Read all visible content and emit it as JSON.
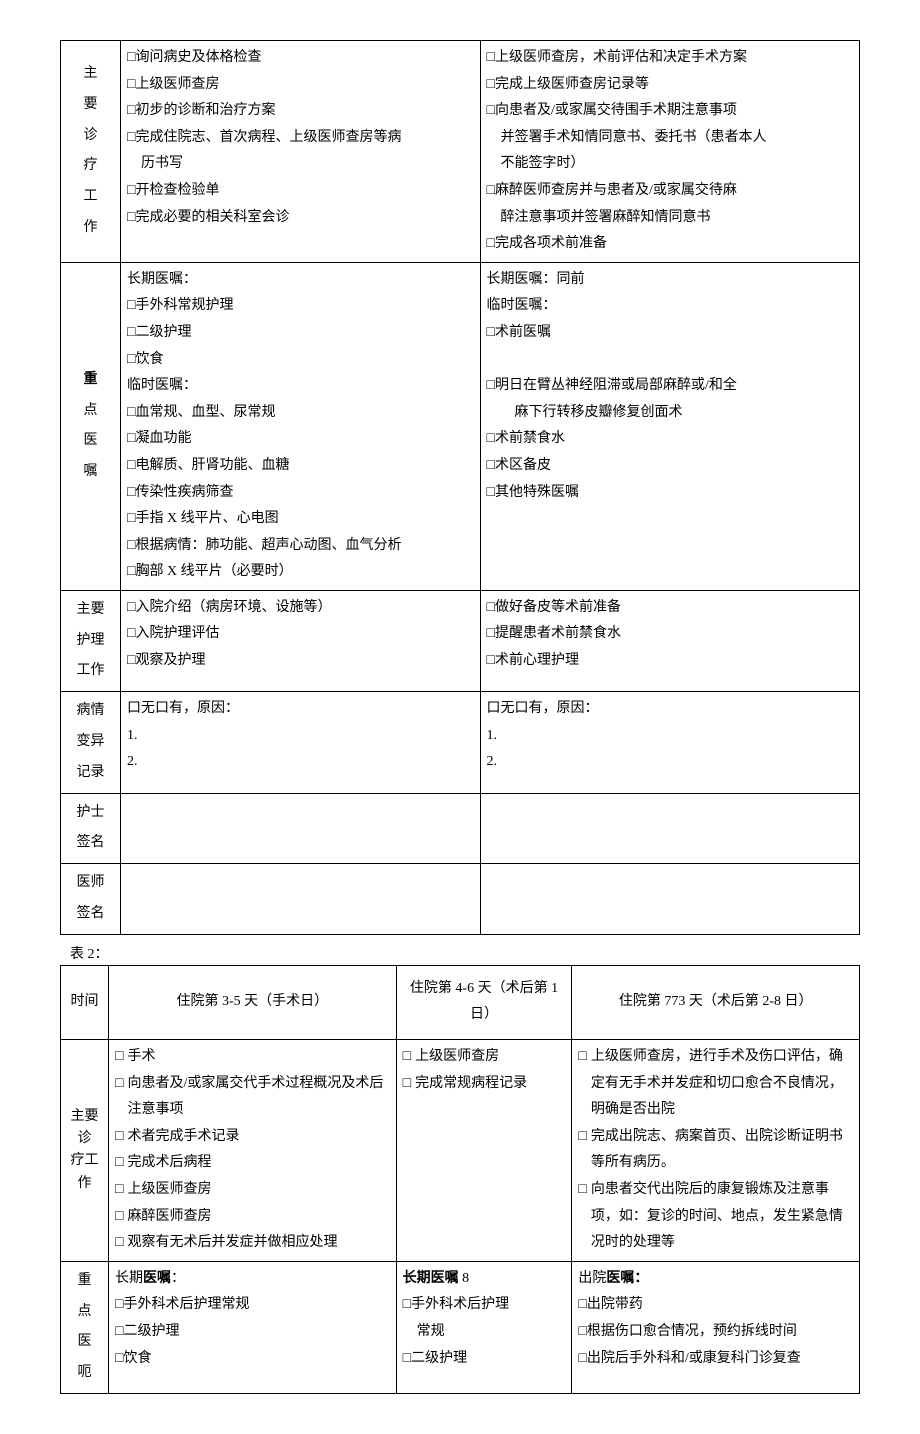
{
  "table1": {
    "rows": [
      {
        "label": "主要诊疗工作",
        "label_chars": [
          "主",
          "要",
          "诊",
          "疗",
          "工",
          "作"
        ],
        "left": [
          "□询问病史及体格检查",
          "□上级医师查房",
          "□初步的诊断和治疗方案",
          "□完成住院志、首次病程、上级医师查房等病",
          "　历书写",
          "□开检查检验单",
          "□完成必要的相关科室会诊"
        ],
        "right": [
          "□上级医师查房，术前评估和决定手术方案",
          "□完成上级医师查房记录等",
          "□向患者及/或家属交待围手术期注意事项",
          "　并签署手术知情同意书、委托书（患者本人",
          "　不能签字时）",
          "□麻醉医师查房并与患者及/或家属交待麻",
          "　醉注意事项并签署麻醉知情同意书",
          "□完成各项术前准备"
        ]
      },
      {
        "label": "重点医嘱",
        "label_chars": [
          "重",
          "点",
          "医",
          "嘱"
        ],
        "label_bold_first": true,
        "left": [
          "长期医嘱：",
          "□手外科常规护理",
          "□二级护理",
          "□饮食",
          "临时医嘱：",
          "□血常规、血型、尿常规",
          "□凝血功能",
          "□电解质、肝肾功能、血糖",
          "□传染性疾病筛查",
          "□手指 X 线平片、心电图",
          "□根据病情：肺功能、超声心动图、血气分析",
          "□胸部 X 线平片（必要时）"
        ],
        "right": [
          "长期医嘱：同前",
          "临时医嘱：",
          "□术前医嘱",
          "",
          "□明日在臂丛神经阻滞或局部麻醉或/和全",
          "　　麻下行转移皮瓣修复创面术",
          "□术前禁食水",
          "□术区备皮",
          "□其他特殊医嘱"
        ]
      },
      {
        "label": "主要护理工作",
        "label_chars": [
          "主要",
          "护理",
          "工作"
        ],
        "left": [
          "□入院介绍（病房环境、设施等）",
          "□入院护理评估",
          "□观察及护理"
        ],
        "right": [
          "□做好备皮等术前准备",
          "□提醒患者术前禁食水",
          "□术前心理护理"
        ]
      },
      {
        "label": "病情变异记录",
        "label_chars": [
          "病情",
          "变异",
          "记录"
        ],
        "left": [
          "口无口有，原因：",
          "1.",
          "2."
        ],
        "right": [
          "口无口有，原因：",
          "1.",
          "2."
        ]
      },
      {
        "label": "护士签名",
        "label_chars": [
          "护士",
          "签名"
        ],
        "left": [
          ""
        ],
        "right": [
          ""
        ]
      },
      {
        "label": "医师签名",
        "label_chars": [
          "医师",
          "签名"
        ],
        "left": [
          ""
        ],
        "right": [
          ""
        ]
      }
    ]
  },
  "table2_caption": "表 2：",
  "table2": {
    "header": {
      "label": "时间",
      "col1": "住院第 3-5 天（手术日）",
      "col2": "住院第 4-6 天（术后第 1 日）",
      "col3": "住院第 773 天（术后第 2-8 日）"
    },
    "rows": [
      {
        "label_chars": [
          "主要诊",
          "疗工作"
        ],
        "col1": [
          {
            "cb": "□",
            "txt": "手术"
          },
          {
            "cb": "□",
            "txt": "向患者及/或家属交代手术过程概况及术后注意事项"
          },
          {
            "cb": "□",
            "txt": "术者完成手术记录"
          },
          {
            "cb": "□",
            "txt": "完成术后病程"
          },
          {
            "cb": "□",
            "txt": "上级医师查房"
          },
          {
            "cb": "□",
            "txt": "麻醉医师查房"
          },
          {
            "cb": "□",
            "txt": "观察有无术后并发症并做相应处理"
          }
        ],
        "col2": [
          {
            "cb": "□",
            "txt": "上级医师查房"
          },
          {
            "cb": "□",
            "txt": "完成常规病程记录"
          }
        ],
        "col3": [
          {
            "cb": "□",
            "txt": "上级医师查房，进行手术及伤口评估，确定有无手术并发症和切口愈合不良情况，明确是否出院"
          },
          {
            "cb": "□",
            "txt": "完成出院志、病案首页、出院诊断证明书等所有病历。"
          },
          {
            "cb": "□",
            "txt": "向患者交代出院后的康复锻炼及注意事项，如：复诊的时间、地点，发生紧急情况时的处理等"
          }
        ]
      },
      {
        "label_chars": [
          "重",
          "点",
          "医",
          "呃"
        ],
        "col1_header": "长期医嘱：",
        "col1_header_bold": "医嘱",
        "col1": [
          "□手外科术后护理常规",
          "□二级护理",
          "□饮食"
        ],
        "col2_header": "长期医嘱 8",
        "col2_header_bold": "长期医嘱",
        "col2": [
          "□手外科术后护理常规",
          "□二级护理"
        ],
        "col3_header_pre": "出院",
        "col3_header_bold": "医嘱：",
        "col3": [
          "□出院带药",
          "□根据伤口愈合情况，预约拆线时间",
          "□出院后手外科和/或康复科门诊复查"
        ]
      }
    ]
  }
}
